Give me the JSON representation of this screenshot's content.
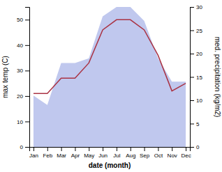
{
  "chart_data": {
    "type": "line",
    "categories": [
      "Jan",
      "Feb",
      "Mar",
      "Apr",
      "May",
      "Jun",
      "Jul",
      "Aug",
      "Sep",
      "Oct",
      "Nov",
      "Dec"
    ],
    "series": [
      {
        "type": "area",
        "axis": "y2",
        "color": "#c0c8ee",
        "values": [
          11,
          9,
          18,
          18,
          19,
          28,
          30,
          30,
          27,
          19,
          14,
          14
        ]
      },
      {
        "type": "line",
        "color": "#aa3344",
        "values": [
          21,
          21,
          27,
          27,
          33,
          46,
          50,
          50,
          46,
          36,
          22,
          25
        ]
      }
    ],
    "xlabel": "date (month)",
    "ylabel": "max temp (C)",
    "y2label": "med. precipitation (kg/m2)",
    "ylim": [
      0,
      55
    ],
    "yticks": [
      0,
      10,
      20,
      30,
      40,
      50
    ],
    "y2lim": [
      0,
      30
    ],
    "y2ticks": [
      0,
      5,
      10,
      15,
      20,
      25,
      30
    ],
    "grid": false
  }
}
